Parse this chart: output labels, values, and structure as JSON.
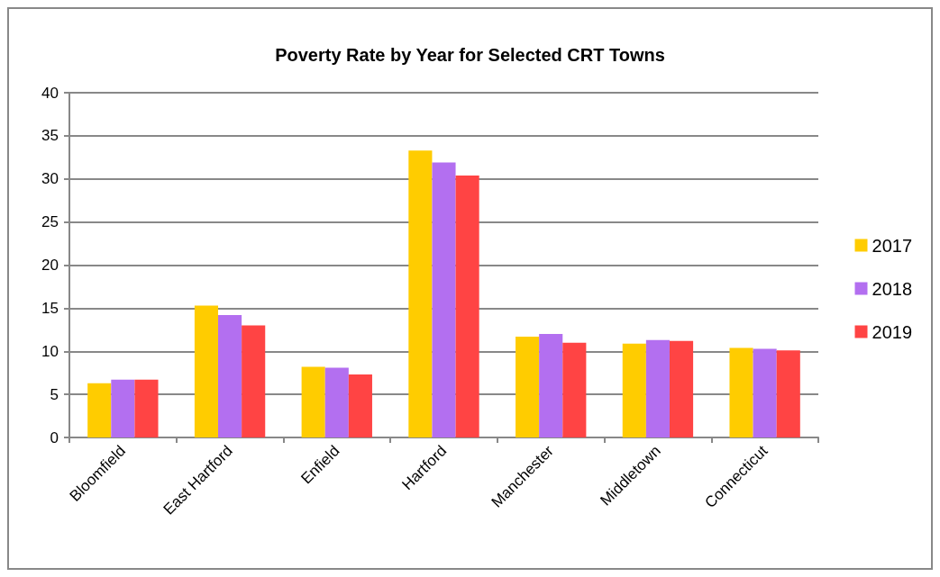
{
  "chart_data": {
    "type": "bar",
    "title": "Poverty Rate by Year for Selected CRT Towns",
    "categories": [
      "Bloomfield",
      "East Hartford",
      "Enfield",
      "Hartford",
      "Manchester",
      "Middletown",
      "Connecticut"
    ],
    "series": [
      {
        "name": "2017",
        "color": "#ffcc00",
        "values": [
          6.3,
          15.3,
          8.2,
          33.3,
          11.7,
          10.9,
          10.4
        ]
      },
      {
        "name": "2018",
        "color": "#b36ff0",
        "values": [
          6.7,
          14.2,
          8.1,
          31.9,
          12.0,
          11.3,
          10.3
        ]
      },
      {
        "name": "2019",
        "color": "#ff4444",
        "values": [
          6.7,
          13.0,
          7.3,
          30.4,
          11.0,
          11.2,
          10.1
        ]
      }
    ],
    "ylim": [
      0,
      40
    ],
    "yticks": [
      0,
      5,
      10,
      15,
      20,
      25,
      30,
      35,
      40
    ],
    "grid": "y",
    "legend": "right"
  }
}
